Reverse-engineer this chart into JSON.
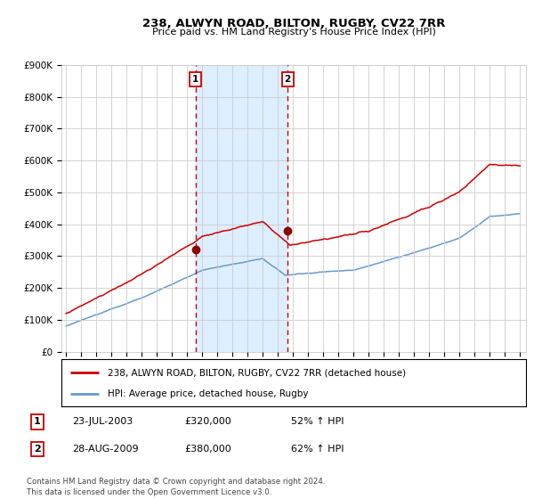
{
  "title_line1": "238, ALWYN ROAD, BILTON, RUGBY, CV22 7RR",
  "title_line2": "Price paid vs. HM Land Registry's House Price Index (HPI)",
  "legend_line1": "238, ALWYN ROAD, BILTON, RUGBY, CV22 7RR (detached house)",
  "legend_line2": "HPI: Average price, detached house, Rugby",
  "annotation1_date": "23-JUL-2003",
  "annotation1_price": "£320,000",
  "annotation1_hpi": "52% ↑ HPI",
  "annotation2_date": "28-AUG-2009",
  "annotation2_price": "£380,000",
  "annotation2_hpi": "62% ↑ HPI",
  "footer": "Contains HM Land Registry data © Crown copyright and database right 2024.\nThis data is licensed under the Open Government Licence v3.0.",
  "sale1_date_num": 2003.556,
  "sale1_price": 320000,
  "sale2_date_num": 2009.653,
  "sale2_price": 380000,
  "hpi_color": "#6699cc",
  "price_color": "#cc0000",
  "marker_color": "#880000",
  "shade_color": "#ddeeff",
  "vline_color": "#cc0000",
  "grid_color": "#cccccc",
  "background_color": "#ffffff",
  "yticks": [
    0,
    100000,
    200000,
    300000,
    400000,
    500000,
    600000,
    700000,
    800000,
    900000
  ],
  "ytick_labels": [
    "£0",
    "£100K",
    "£200K",
    "£300K",
    "£400K",
    "£500K",
    "£600K",
    "£700K",
    "£800K",
    "£900K"
  ],
  "xlim_start": 1994.7,
  "xlim_end": 2025.4
}
